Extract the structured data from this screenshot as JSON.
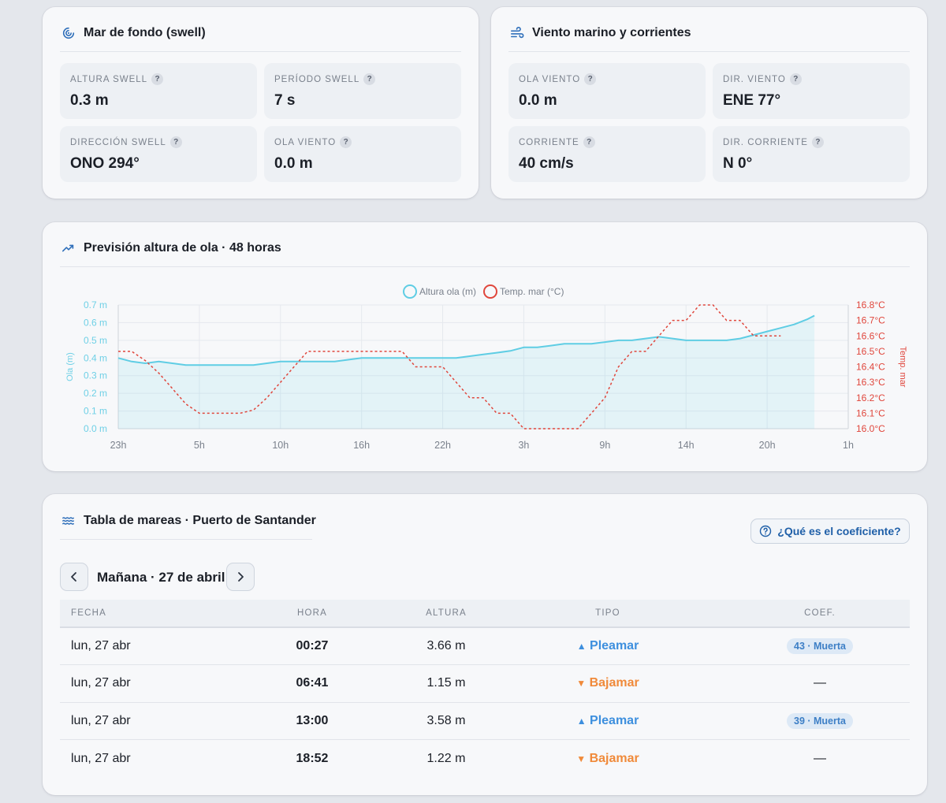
{
  "swell_card": {
    "title": "Mar de fondo (swell)",
    "icon": "swell-icon",
    "stats": [
      {
        "label": "ALTURA SWELL",
        "value": "0.3 m"
      },
      {
        "label": "PERÍODO SWELL",
        "value": "7 s"
      },
      {
        "label": "DIRECCIÓN SWELL",
        "value": "ONO 294°"
      },
      {
        "label": "OLA VIENTO",
        "value": "0.0 m"
      }
    ]
  },
  "wind_card": {
    "title": "Viento marino y corrientes",
    "icon": "wind-icon",
    "stats": [
      {
        "label": "OLA VIENTO",
        "value": "0.0 m"
      },
      {
        "label": "DIR. VIENTO",
        "value": "ENE 77°"
      },
      {
        "label": "CORRIENTE",
        "value": "40 cm/s"
      },
      {
        "label": "DIR. CORRIENTE",
        "value": "N 0°"
      }
    ]
  },
  "help_glyph": "?",
  "forecast_card": {
    "title": "Previsión altura de ola · 48 horas",
    "icon": "trend-icon"
  },
  "chart_data": {
    "type": "line",
    "title": "",
    "x_ticks": [
      "23h",
      "5h",
      "10h",
      "16h",
      "22h",
      "3h",
      "9h",
      "14h",
      "20h",
      "1h"
    ],
    "x_hours": [
      0,
      6,
      12,
      18,
      24,
      30,
      36,
      42,
      48,
      54
    ],
    "legend": [
      "Altura ola (m)",
      "Temp. mar (°C)"
    ],
    "legend_position": "top-center",
    "grid": true,
    "y_left": {
      "label": "Ola (m)",
      "range": [
        0,
        0.7
      ],
      "ticks": [
        "0.0 m",
        "0.1 m",
        "0.2 m",
        "0.3 m",
        "0.4 m",
        "0.5 m",
        "0.6 m",
        "0.7 m"
      ]
    },
    "y_right": {
      "label": "Temp. mar",
      "range": [
        16.0,
        16.8
      ],
      "ticks": [
        "16.0°C",
        "16.1°C",
        "16.2°C",
        "16.3°C",
        "16.4°C",
        "16.5°C",
        "16.6°C",
        "16.7°C",
        "16.8°C"
      ]
    },
    "series": [
      {
        "name": "Altura ola (m)",
        "color": "#5fcde4",
        "style": "solid-filled",
        "axis": "left",
        "points": [
          [
            0,
            0.4
          ],
          [
            1,
            0.38
          ],
          [
            2,
            0.37
          ],
          [
            3,
            0.38
          ],
          [
            4,
            0.37
          ],
          [
            5,
            0.36
          ],
          [
            6,
            0.36
          ],
          [
            7,
            0.36
          ],
          [
            8,
            0.36
          ],
          [
            9,
            0.36
          ],
          [
            10,
            0.36
          ],
          [
            11,
            0.37
          ],
          [
            12,
            0.38
          ],
          [
            13,
            0.38
          ],
          [
            14,
            0.38
          ],
          [
            15,
            0.38
          ],
          [
            16,
            0.38
          ],
          [
            17,
            0.39
          ],
          [
            18,
            0.4
          ],
          [
            19,
            0.4
          ],
          [
            20,
            0.4
          ],
          [
            21,
            0.4
          ],
          [
            22,
            0.4
          ],
          [
            23,
            0.4
          ],
          [
            24,
            0.4
          ],
          [
            25,
            0.4
          ],
          [
            26,
            0.41
          ],
          [
            27,
            0.42
          ],
          [
            28,
            0.43
          ],
          [
            29,
            0.44
          ],
          [
            30,
            0.46
          ],
          [
            31,
            0.46
          ],
          [
            32,
            0.47
          ],
          [
            33,
            0.48
          ],
          [
            34,
            0.48
          ],
          [
            35,
            0.48
          ],
          [
            36,
            0.49
          ],
          [
            37,
            0.5
          ],
          [
            38,
            0.5
          ],
          [
            39,
            0.51
          ],
          [
            40,
            0.52
          ],
          [
            41,
            0.51
          ],
          [
            42,
            0.5
          ],
          [
            43,
            0.5
          ],
          [
            44,
            0.5
          ],
          [
            45,
            0.5
          ],
          [
            46,
            0.51
          ],
          [
            47,
            0.53
          ],
          [
            48,
            0.55
          ],
          [
            49,
            0.57
          ],
          [
            50,
            0.59
          ],
          [
            51,
            0.62
          ],
          [
            51.5,
            0.64
          ]
        ]
      },
      {
        "name": "Temp. mar (°C)",
        "color": "#e0463c",
        "style": "dashed",
        "axis": "right",
        "points": [
          [
            0,
            16.5
          ],
          [
            1,
            16.5
          ],
          [
            2,
            16.44
          ],
          [
            3,
            16.36
          ],
          [
            4,
            16.26
          ],
          [
            5,
            16.16
          ],
          [
            6,
            16.1
          ],
          [
            7,
            16.1
          ],
          [
            8,
            16.1
          ],
          [
            9,
            16.1
          ],
          [
            10,
            16.12
          ],
          [
            11,
            16.2
          ],
          [
            12,
            16.3
          ],
          [
            13,
            16.4
          ],
          [
            14,
            16.5
          ],
          [
            15,
            16.5
          ],
          [
            16,
            16.5
          ],
          [
            17,
            16.5
          ],
          [
            18,
            16.5
          ],
          [
            19,
            16.5
          ],
          [
            20,
            16.5
          ],
          [
            21,
            16.5
          ],
          [
            22,
            16.4
          ],
          [
            23,
            16.4
          ],
          [
            24,
            16.4
          ],
          [
            25,
            16.3
          ],
          [
            26,
            16.2
          ],
          [
            27,
            16.2
          ],
          [
            28,
            16.1
          ],
          [
            29,
            16.1
          ],
          [
            30,
            16.0
          ],
          [
            31,
            16.0
          ],
          [
            32,
            16.0
          ],
          [
            33,
            16.0
          ],
          [
            34,
            16.0
          ],
          [
            35,
            16.1
          ],
          [
            36,
            16.2
          ],
          [
            37,
            16.4
          ],
          [
            38,
            16.5
          ],
          [
            39,
            16.5
          ],
          [
            40,
            16.6
          ],
          [
            41,
            16.7
          ],
          [
            42,
            16.7
          ],
          [
            43,
            16.8
          ],
          [
            44,
            16.8
          ],
          [
            45,
            16.7
          ],
          [
            46,
            16.7
          ],
          [
            47,
            16.6
          ],
          [
            48,
            16.6
          ],
          [
            49,
            16.6
          ]
        ]
      }
    ]
  },
  "tides_card": {
    "title": "Tabla de mareas · Puerto de Santander",
    "icon": "waves-icon",
    "coef_button": "¿Qué es el coeficiente?",
    "date_label": "Mañana · 27 de abril",
    "columns": [
      "FECHA",
      "HORA",
      "ALTURA",
      "TIPO",
      "COEF."
    ],
    "rows": [
      {
        "fecha": "lun, 27 abr",
        "hora": "00:27",
        "altura": "3.66 m",
        "tipo": "Pleamar",
        "kind": "high",
        "coef": "43 · Muerta"
      },
      {
        "fecha": "lun, 27 abr",
        "hora": "06:41",
        "altura": "1.15 m",
        "tipo": "Bajamar",
        "kind": "low",
        "coef": "—"
      },
      {
        "fecha": "lun, 27 abr",
        "hora": "13:00",
        "altura": "3.58 m",
        "tipo": "Pleamar",
        "kind": "high",
        "coef": "39 · Muerta"
      },
      {
        "fecha": "lun, 27 abr",
        "hora": "18:52",
        "altura": "1.22 m",
        "tipo": "Bajamar",
        "kind": "low",
        "coef": "—"
      }
    ]
  }
}
